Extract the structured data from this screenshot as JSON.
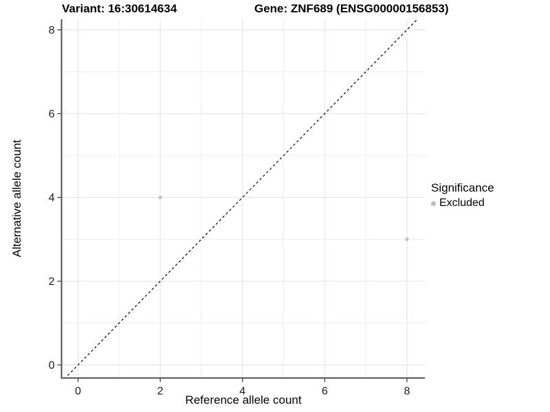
{
  "titles": {
    "variant": "Variant: 16:30614634",
    "gene": "Gene: ZNF689 (ENSG00000156853)"
  },
  "legend": {
    "title": "Significance",
    "items": [
      {
        "label": "Excluded",
        "color": "#bdbdbd"
      }
    ]
  },
  "colors": {
    "point": "#bdbdbd",
    "axis_line": "#4d4d4d",
    "tick_mark": "#333333",
    "tick_label": "#1a1a1a",
    "grid_major": "#e3e3e3",
    "grid_minor": "#efefef",
    "reference_line": "#000000",
    "background": "#ffffff"
  },
  "chart_data": {
    "type": "scatter",
    "title": "Variant: 16:30614634 | Gene: ZNF689 (ENSG00000156853)",
    "xlabel": "Reference allele count",
    "ylabel": "Alternative allele count",
    "xlim": [
      -0.4,
      8.45
    ],
    "ylim": [
      -0.3,
      8.25
    ],
    "x_ticks": [
      0,
      2,
      4,
      6,
      8
    ],
    "y_ticks": [
      0,
      2,
      4,
      6,
      8
    ],
    "x_minor_ticks": [
      1,
      3,
      5,
      7
    ],
    "y_minor_ticks": [
      1,
      3,
      5,
      7
    ],
    "grid": true,
    "legend_position": "right",
    "series": [
      {
        "name": "Excluded",
        "color": "#bdbdbd",
        "points": [
          {
            "x": 2,
            "y": 4
          },
          {
            "x": 8,
            "y": 3
          }
        ]
      }
    ],
    "reference_line": {
      "kind": "abline",
      "slope": 1,
      "intercept": 0,
      "style": "dashed",
      "color": "#000000"
    }
  }
}
